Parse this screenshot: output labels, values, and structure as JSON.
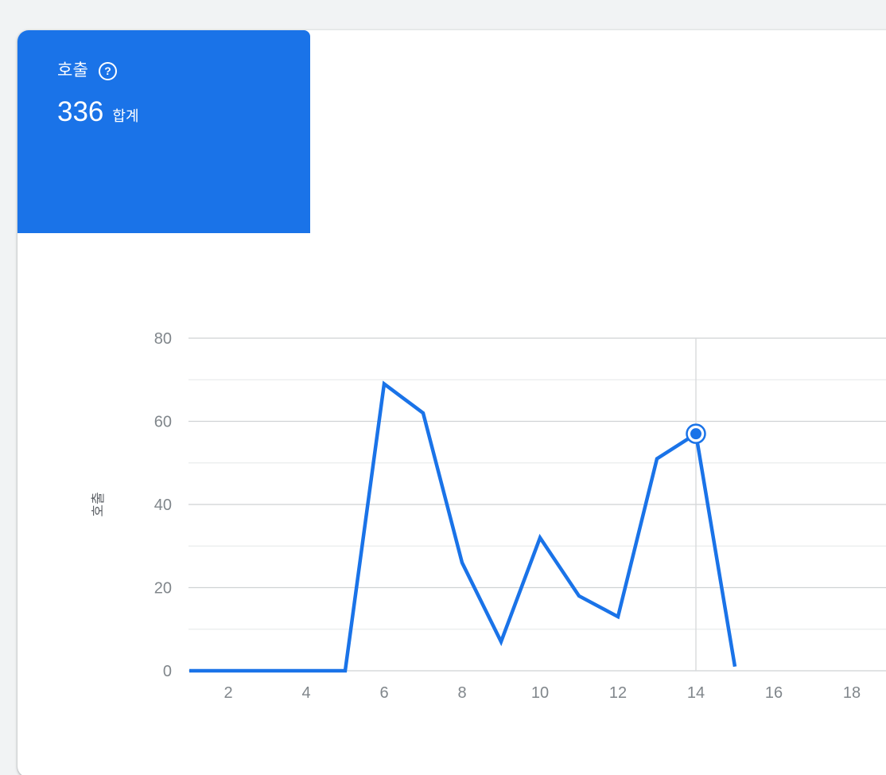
{
  "card": {
    "title": "호출",
    "help_glyph": "?",
    "total": "336",
    "total_label": "합계"
  },
  "chart_data": {
    "type": "line",
    "title": "호출",
    "xlabel": "",
    "ylabel": "호출",
    "x": [
      1,
      2,
      3,
      4,
      5,
      6,
      7,
      8,
      9,
      10,
      11,
      12,
      13,
      14,
      15
    ],
    "values": [
      0,
      0,
      0,
      0,
      0,
      69,
      62,
      26,
      7,
      32,
      18,
      13,
      51,
      57,
      1
    ],
    "total": 336,
    "xticks": [
      2,
      4,
      6,
      8,
      10,
      12,
      14,
      16,
      18
    ],
    "yticks_labeled": [
      0,
      20,
      40,
      60,
      80
    ],
    "yticks_minor": [
      10,
      30,
      50,
      70
    ],
    "ylim": [
      0,
      80
    ],
    "xlim": [
      1,
      18.9
    ],
    "grid": true,
    "legend": "none",
    "line_color": "#1a73e8",
    "highlight_point": {
      "x": 14,
      "y": 57
    }
  },
  "theme": {
    "background": "#f1f3f4",
    "panel": "#ffffff",
    "accent_blue": "#1a73e8",
    "card_text": "#ffffff",
    "tick_label": "#80868b",
    "axis_title": "#5f6368",
    "grid_major": "#cfd2d4",
    "grid_minor": "#eaeced",
    "crosshair": "#d8dadc"
  }
}
